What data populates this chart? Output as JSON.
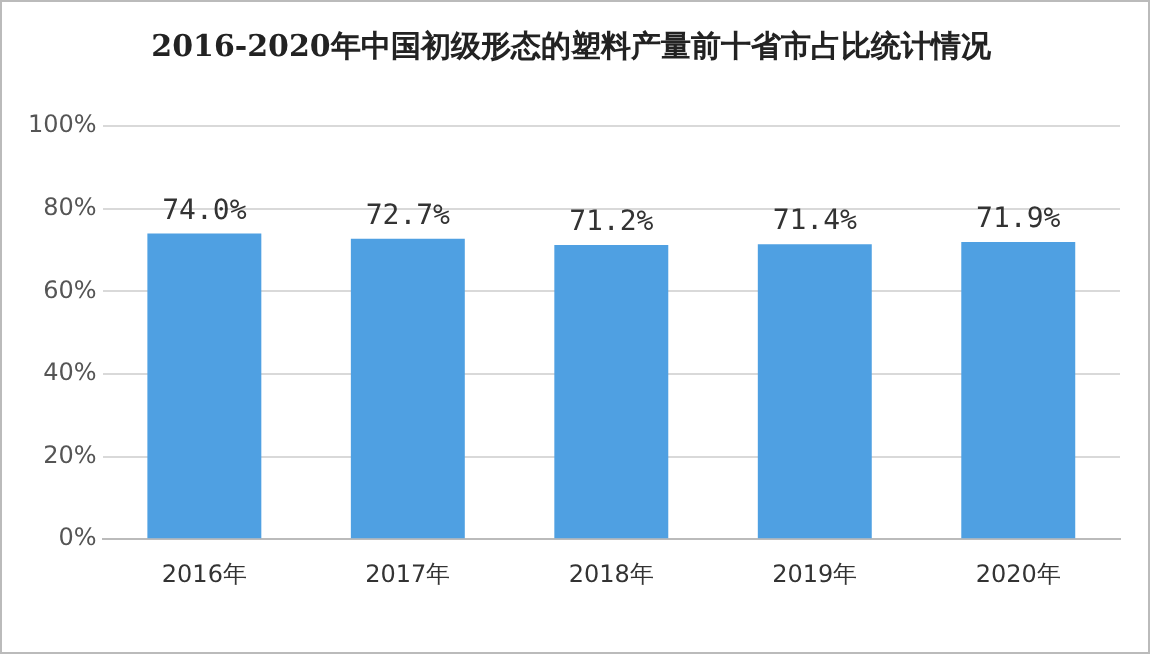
{
  "chart_data": {
    "type": "bar",
    "title": "2016-2020年中国初级形态的塑料产量前十省市占比统计情况",
    "categories": [
      "2016年",
      "2017年",
      "2018年",
      "2019年",
      "2020年"
    ],
    "values": [
      74.0,
      72.7,
      71.2,
      71.4,
      71.9
    ],
    "value_labels": [
      "74.0%",
      "72.7%",
      "71.2%",
      "71.4%",
      "71.9%"
    ],
    "color": "#4fa0e2",
    "ylim": [
      0,
      100
    ],
    "yticks": [
      {
        "value": 0,
        "label": "0%"
      },
      {
        "value": 20,
        "label": "20%"
      },
      {
        "value": 40,
        "label": "40%"
      },
      {
        "value": 60,
        "label": "60%"
      },
      {
        "value": 80,
        "label": "80%"
      },
      {
        "value": 100,
        "label": "100%"
      }
    ],
    "grid": "y",
    "legend": false
  }
}
